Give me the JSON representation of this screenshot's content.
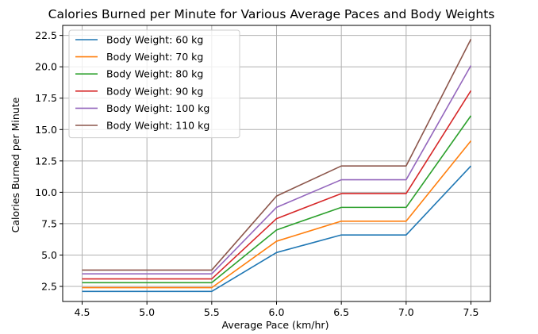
{
  "chart_data": {
    "type": "line",
    "title": "Calories Burned per Minute for Various Average Paces and Body Weights",
    "xlabel": "Average Pace (km/hr)",
    "ylabel": "Calories Burned per Minute",
    "x": [
      4.5,
      5.0,
      5.5,
      6.0,
      6.5,
      7.0,
      7.5
    ],
    "xlim": [
      4.35,
      7.65
    ],
    "ylim": [
      1.3,
      23.3
    ],
    "xticks": [
      "4.5",
      "5.0",
      "5.5",
      "6.0",
      "6.5",
      "7.0",
      "7.5"
    ],
    "yticks": [
      "2.5",
      "5.0",
      "7.5",
      "10.0",
      "12.5",
      "15.0",
      "17.5",
      "20.0",
      "22.5"
    ],
    "grid": true,
    "legend_position": "upper-left",
    "series": [
      {
        "name": "Body Weight: 60 kg",
        "color": "#1f77b4",
        "values": [
          2.1,
          2.1,
          2.1,
          5.2,
          6.6,
          6.6,
          12.1
        ]
      },
      {
        "name": "Body Weight: 70 kg",
        "color": "#ff7f0e",
        "values": [
          2.4,
          2.4,
          2.4,
          6.1,
          7.7,
          7.7,
          14.1
        ]
      },
      {
        "name": "Body Weight: 80 kg",
        "color": "#2ca02c",
        "values": [
          2.8,
          2.8,
          2.8,
          7.0,
          8.8,
          8.8,
          16.1
        ]
      },
      {
        "name": "Body Weight: 90 kg",
        "color": "#d62728",
        "values": [
          3.1,
          3.1,
          3.1,
          7.9,
          9.9,
          9.9,
          18.1
        ]
      },
      {
        "name": "Body Weight: 100 kg",
        "color": "#9467bd",
        "values": [
          3.5,
          3.5,
          3.5,
          8.8,
          11.0,
          11.0,
          20.1
        ]
      },
      {
        "name": "Body Weight: 110 kg",
        "color": "#8c564b",
        "values": [
          3.8,
          3.8,
          3.8,
          9.7,
          12.1,
          12.1,
          22.2
        ]
      }
    ]
  }
}
